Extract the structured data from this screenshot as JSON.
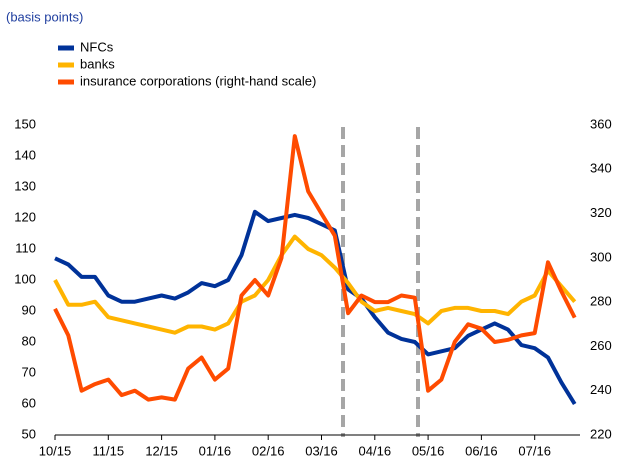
{
  "chart_data": {
    "type": "line",
    "subtitle": "(basis points)",
    "x": [
      0,
      0.25,
      0.5,
      0.75,
      1,
      1.25,
      1.5,
      1.75,
      2,
      2.25,
      2.5,
      2.75,
      3,
      3.25,
      3.5,
      3.75,
      4,
      4.25,
      4.5,
      4.75,
      5,
      5.25,
      5.5,
      5.75,
      6,
      6.25,
      6.5,
      6.75,
      7,
      7.25,
      7.5,
      7.75,
      8,
      8.25,
      8.5,
      8.75,
      9,
      9.25,
      9.5,
      9.75
    ],
    "xlim": [
      0,
      9.85
    ],
    "xticks": [
      {
        "value": 0,
        "label": "10/15"
      },
      {
        "value": 1,
        "label": "11/15"
      },
      {
        "value": 2,
        "label": "12/15"
      },
      {
        "value": 3,
        "label": "01/16"
      },
      {
        "value": 4,
        "label": "02/16"
      },
      {
        "value": 5,
        "label": "03/16"
      },
      {
        "value": 6,
        "label": "04/16"
      },
      {
        "value": 7,
        "label": "05/16"
      },
      {
        "value": 8,
        "label": "06/16"
      },
      {
        "value": 9,
        "label": "07/16"
      }
    ],
    "ylim": [
      50,
      150
    ],
    "yticks": [
      50,
      60,
      70,
      80,
      90,
      100,
      110,
      120,
      130,
      140,
      150
    ],
    "y2lim": [
      220,
      360
    ],
    "y2ticks": [
      220,
      240,
      260,
      280,
      300,
      320,
      340,
      360
    ],
    "series": [
      {
        "name": "NFCs",
        "color": "#003299",
        "values": [
          107,
          105,
          101,
          101,
          95,
          93,
          93,
          94,
          95,
          94,
          96,
          99,
          98,
          100,
          108,
          122,
          119,
          120,
          121,
          120,
          118,
          116,
          97,
          94,
          88,
          83,
          81,
          80,
          76,
          77,
          78,
          82,
          84,
          86,
          84,
          79,
          78,
          75,
          67,
          60
        ]
      },
      {
        "name": "banks",
        "color": "#ffb400",
        "values": [
          100,
          92,
          92,
          93,
          88,
          87,
          86,
          85,
          84,
          83,
          85,
          85,
          84,
          86,
          93,
          95,
          100,
          108,
          114,
          110,
          108,
          104,
          99,
          93,
          90,
          91,
          90,
          89,
          86,
          90,
          91,
          91,
          90,
          90,
          89,
          93,
          95,
          103,
          98,
          93
        ]
      },
      {
        "name": "insurance corporations (right-hand scale)",
        "color": "#ff4b00",
        "axis": "y2",
        "values": [
          277,
          265,
          240,
          243,
          245,
          238,
          240,
          236,
          237,
          236,
          250,
          255,
          245,
          250,
          283,
          290,
          283,
          300,
          355,
          330,
          320,
          310,
          275,
          283,
          280,
          280,
          283,
          282,
          240,
          245,
          262,
          270,
          268,
          262,
          263,
          265,
          266,
          298,
          285,
          273
        ]
      }
    ]
  }
}
